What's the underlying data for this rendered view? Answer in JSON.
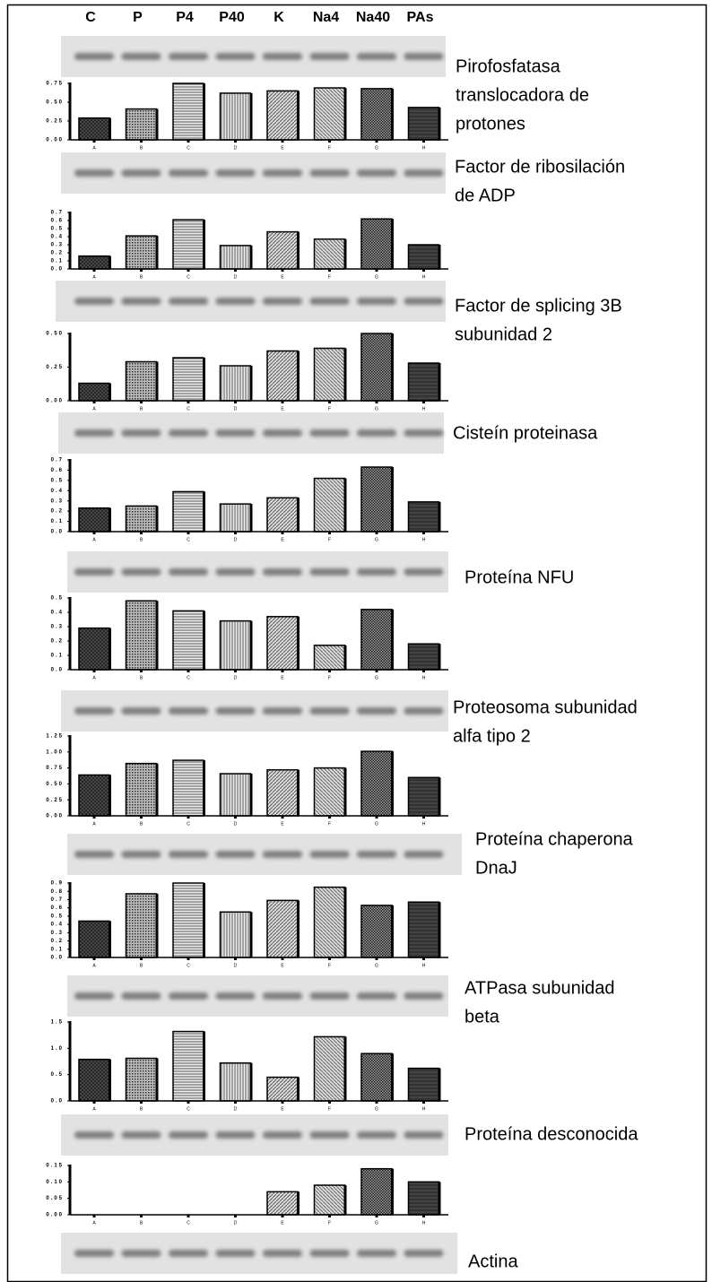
{
  "lanes": [
    "C",
    "P",
    "P4",
    "P40",
    "K",
    "Na4",
    "Na40",
    "PAs"
  ],
  "actin": "Actina",
  "chart_data": [
    {
      "type": "bar",
      "title": [
        "Pirofosfatasa",
        "translocadora de",
        "protones"
      ],
      "categories": [
        "A",
        "B",
        "C",
        "D",
        "E",
        "F",
        "G",
        "H"
      ],
      "values": [
        0.29,
        0.41,
        0.75,
        0.62,
        0.65,
        0.69,
        0.68,
        0.43
      ],
      "ylim": [
        0,
        0.75
      ],
      "yticks": [
        {
          "value": 0,
          "label": "0.00"
        },
        0.25,
        {
          "value": 0.5,
          "label": "0.50"
        },
        0.75
      ]
    },
    {
      "type": "bar",
      "title": [
        "Factor de ribosilación",
        "de ADP"
      ],
      "categories": [
        "A",
        "B",
        "C",
        "D",
        "E",
        "F",
        "G",
        "H"
      ],
      "values": [
        0.16,
        0.41,
        0.61,
        0.29,
        0.46,
        0.37,
        0.62,
        0.3
      ],
      "ylim": [
        0,
        0.7
      ],
      "yticks": [
        {
          "value": 0,
          "label": "0.0"
        },
        0.1,
        0.2,
        0.3,
        0.4,
        0.5,
        0.6,
        0.7
      ]
    },
    {
      "type": "bar",
      "title": [
        "Factor de splicing 3B",
        "subunidad 2"
      ],
      "categories": [
        "A",
        "B",
        "C",
        "D",
        "E",
        "F",
        "G",
        "H"
      ],
      "values": [
        0.13,
        0.29,
        0.32,
        0.26,
        0.37,
        0.39,
        0.5,
        0.28
      ],
      "ylim": [
        0,
        0.5
      ],
      "yticks": [
        {
          "value": 0,
          "label": "0.00"
        },
        0.25,
        {
          "value": 0.5,
          "label": "0.50"
        }
      ]
    },
    {
      "type": "bar",
      "title": [
        "Cisteín proteinasa"
      ],
      "categories": [
        "A",
        "B",
        "C",
        "D",
        "E",
        "F",
        "G",
        "H"
      ],
      "values": [
        0.23,
        0.25,
        0.39,
        0.27,
        0.33,
        0.52,
        0.63,
        0.29
      ],
      "ylim": [
        0,
        0.7
      ],
      "yticks": [
        {
          "value": 0,
          "label": "0.0"
        },
        0.1,
        0.2,
        0.3,
        0.4,
        0.5,
        0.6,
        0.7
      ]
    },
    {
      "type": "bar",
      "title": [
        "Proteína NFU"
      ],
      "categories": [
        "A",
        "B",
        "C",
        "D",
        "E",
        "F",
        "G",
        "H"
      ],
      "values": [
        0.29,
        0.48,
        0.41,
        0.34,
        0.37,
        0.17,
        0.42,
        0.18
      ],
      "ylim": [
        0,
        0.5
      ],
      "yticks": [
        {
          "value": 0,
          "label": "0.0"
        },
        0.1,
        0.2,
        0.3,
        0.4,
        0.5
      ]
    },
    {
      "type": "bar",
      "title": [
        "Proteosoma subunidad",
        "alfa tipo 2"
      ],
      "categories": [
        "A",
        "B",
        "C",
        "D",
        "E",
        "F",
        "G",
        "H"
      ],
      "values": [
        0.64,
        0.82,
        0.87,
        0.66,
        0.72,
        0.75,
        1.01,
        0.6
      ],
      "ylim": [
        0,
        1.25
      ],
      "yticks": [
        {
          "value": 0,
          "label": "0.00"
        },
        0.25,
        {
          "value": 0.5,
          "label": "0.50"
        },
        0.75,
        {
          "value": 1,
          "label": "1.00"
        },
        1.25
      ]
    },
    {
      "type": "bar",
      "title": [
        "Proteína chaperona",
        "DnaJ"
      ],
      "categories": [
        "A",
        "B",
        "C",
        "D",
        "E",
        "F",
        "G",
        "H"
      ],
      "values": [
        0.44,
        0.77,
        0.9,
        0.55,
        0.69,
        0.85,
        0.63,
        0.67
      ],
      "ylim": [
        0,
        0.9
      ],
      "yticks": [
        {
          "value": 0,
          "label": "0.0"
        },
        0.1,
        0.2,
        0.3,
        0.4,
        0.5,
        0.6,
        0.7,
        0.8,
        0.9
      ]
    },
    {
      "type": "bar",
      "title": [
        "ATPasa subunidad",
        "beta"
      ],
      "categories": [
        "A",
        "B",
        "C",
        "D",
        "E",
        "F",
        "G",
        "H"
      ],
      "values": [
        0.79,
        0.81,
        1.32,
        0.72,
        0.45,
        1.22,
        0.9,
        0.62
      ],
      "ylim": [
        0,
        1.5
      ],
      "yticks": [
        {
          "value": 0,
          "label": "0.0"
        },
        0.5,
        {
          "value": 1,
          "label": "1.0"
        },
        1.5
      ]
    },
    {
      "type": "bar",
      "title": [
        "Proteína desconocida"
      ],
      "categories": [
        "A",
        "B",
        "C",
        "D",
        "E",
        "F",
        "G",
        "H"
      ],
      "values": [
        0,
        0,
        0,
        0,
        0.07,
        0.09,
        0.14,
        0.1
      ],
      "ylim": [
        0,
        0.15
      ],
      "yticks": [
        {
          "value": 0,
          "label": "0.00"
        },
        0.05,
        {
          "value": 0.1,
          "label": "0.10"
        },
        0.15
      ]
    }
  ]
}
